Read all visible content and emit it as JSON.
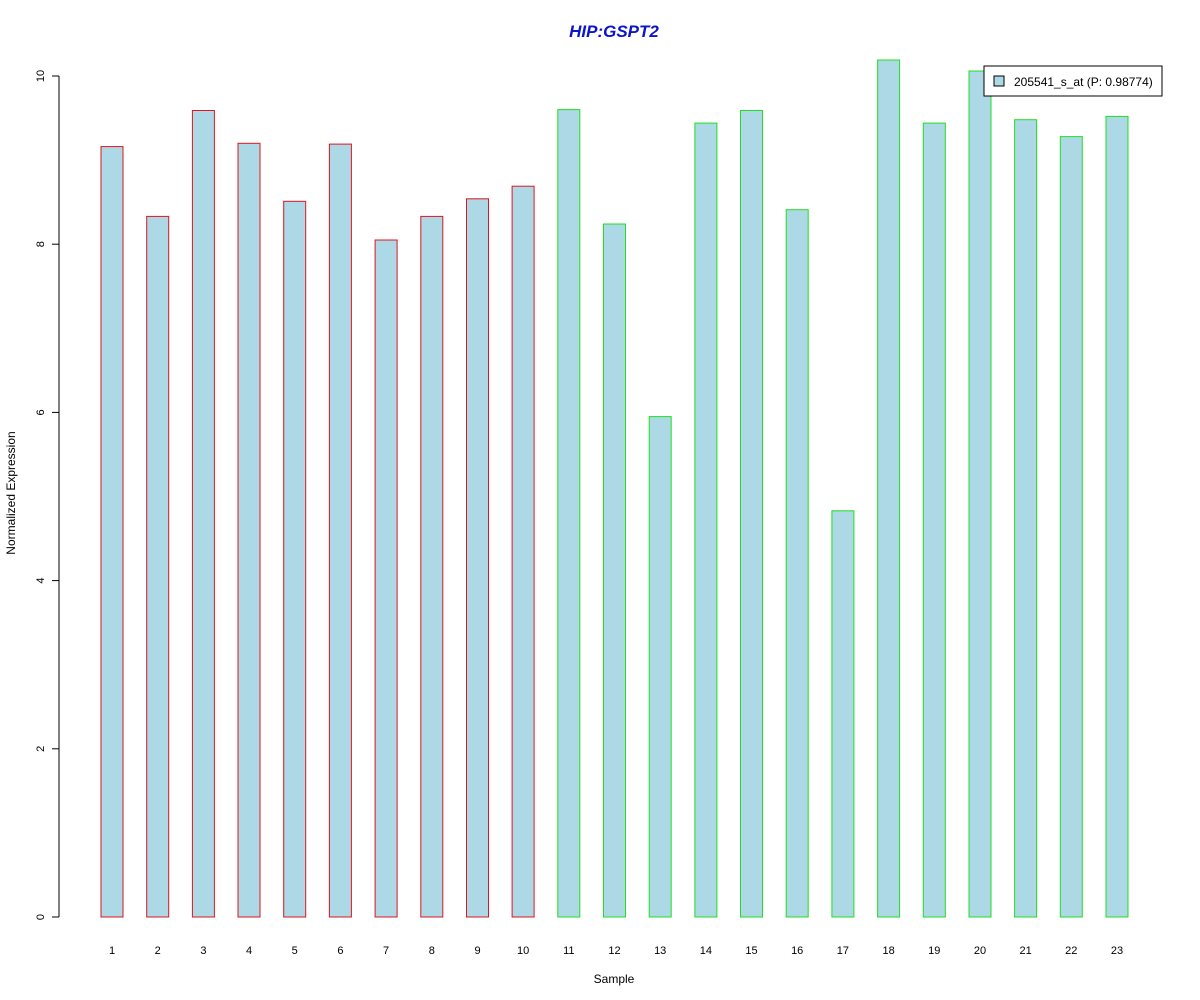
{
  "chart_data": {
    "type": "bar",
    "title": "HIP:GSPT2",
    "xlabel": "Sample",
    "ylabel": "Normalized Expression",
    "categories": [
      "1",
      "2",
      "3",
      "4",
      "5",
      "6",
      "7",
      "8",
      "9",
      "10",
      "11",
      "12",
      "13",
      "14",
      "15",
      "16",
      "17",
      "18",
      "19",
      "20",
      "21",
      "22",
      "23"
    ],
    "series": [
      {
        "name": "205541_s_at (P: 0.98774)",
        "values": [
          9.16,
          8.33,
          9.59,
          9.2,
          8.51,
          9.19,
          8.05,
          8.33,
          8.54,
          8.69,
          9.6,
          8.24,
          5.95,
          9.44,
          9.59,
          8.41,
          4.83,
          10.19,
          9.44,
          10.06,
          9.48,
          9.28,
          9.52
        ]
      }
    ],
    "groups": [
      {
        "samples": [
          "1",
          "2",
          "3",
          "4",
          "5",
          "6",
          "7",
          "8",
          "9",
          "10"
        ],
        "border_color": "#e0141e"
      },
      {
        "samples": [
          "11",
          "12",
          "13",
          "14",
          "15",
          "16",
          "17",
          "18",
          "19",
          "20",
          "21",
          "22",
          "23"
        ],
        "border_color": "#1ee01e"
      }
    ],
    "yticks": [
      0,
      2,
      4,
      6,
      8,
      10
    ],
    "ylim": [
      0,
      10.2
    ],
    "legend_position": "top-right",
    "grid": false,
    "colors": {
      "bar_fill": "#add8e6",
      "title": "#0b14c8"
    }
  }
}
